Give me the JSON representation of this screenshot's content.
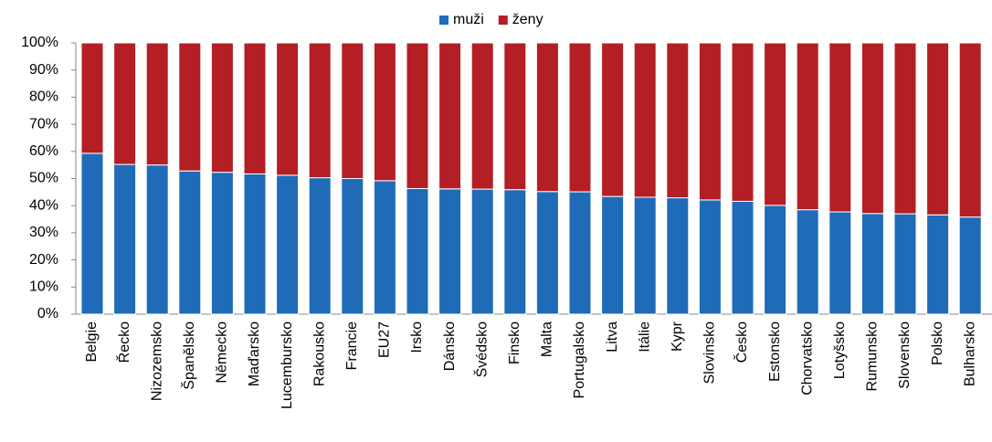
{
  "chart_data": {
    "type": "stacked_bar",
    "categories": [
      "Belgie",
      "Řecko",
      "Nizozemsko",
      "Španělsko",
      "Německo",
      "Maďarsko",
      "Lucembursko",
      "Rakousko",
      "Francie",
      "EU27",
      "Irsko",
      "Dánsko",
      "Švédsko",
      "Finsko",
      "Malta",
      "Portugalsko",
      "Litva",
      "Itálie",
      "Kypr",
      "Slovinsko",
      "Česko",
      "Estonsko",
      "Chorvatsko",
      "Lotyšsko",
      "Rumunsko",
      "Slovensko",
      "Polsko",
      "Bulharsko"
    ],
    "series": [
      {
        "name": "muži",
        "color": "#1f6bb8",
        "values": [
          59.3,
          55.2,
          55,
          52.8,
          52.3,
          51.7,
          51.2,
          50.3,
          50,
          49.2,
          46.3,
          46.2,
          46.1,
          45.9,
          45.2,
          45.1,
          43.4,
          43.1,
          42.9,
          42.1,
          41.6,
          40.1,
          38.5,
          37.7,
          37.1,
          37,
          36.6,
          35.8
        ]
      },
      {
        "name": "ženy",
        "color": "#b31f24",
        "values": [
          40.7,
          44.8,
          45,
          47.2,
          47.7,
          48.3,
          48.8,
          49.7,
          50,
          50.8,
          53.7,
          53.8,
          53.9,
          54.1,
          54.8,
          54.9,
          56.6,
          56.9,
          57.1,
          57.9,
          58.4,
          59.9,
          61.5,
          62.3,
          62.9,
          63,
          63.4,
          64.2
        ]
      }
    ],
    "ylim": [
      0,
      100
    ],
    "yticks": [
      {
        "value": 0,
        "label": "0%"
      },
      {
        "value": 10,
        "label": "10%"
      },
      {
        "value": 20,
        "label": "20%"
      },
      {
        "value": 30,
        "label": "30%"
      },
      {
        "value": 40,
        "label": "40%"
      },
      {
        "value": 50,
        "label": "50%"
      },
      {
        "value": 60,
        "label": "60%"
      },
      {
        "value": 70,
        "label": "70%"
      },
      {
        "value": 80,
        "label": "80%"
      },
      {
        "value": 90,
        "label": "90%"
      },
      {
        "value": 100,
        "label": "100%"
      }
    ],
    "legend": "top"
  }
}
